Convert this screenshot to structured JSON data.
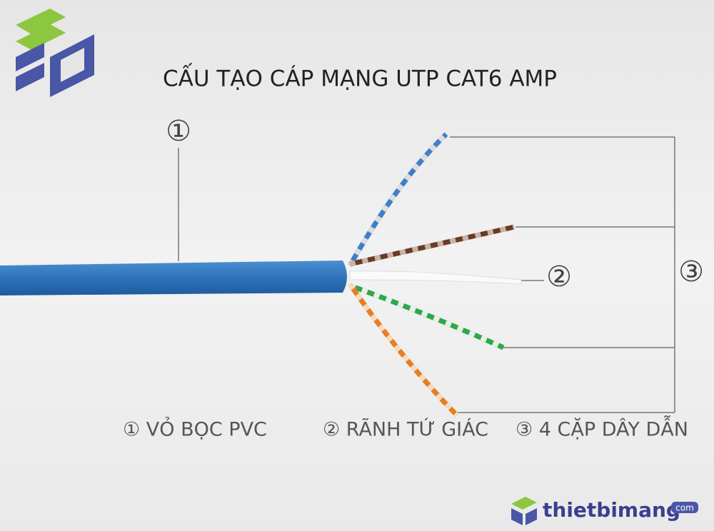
{
  "title": "CẤU TẠO CÁP MẠNG UTP CAT6 AMP",
  "callouts": [
    "①",
    "②",
    "③"
  ],
  "legend": [
    "① VỎ BỌC PVC",
    "② RÃNH TỨ GIÁC",
    "③ 4 CẶP DÂY DẪN"
  ],
  "brand": {
    "name": "thietbimang",
    "suffix": "com"
  }
}
